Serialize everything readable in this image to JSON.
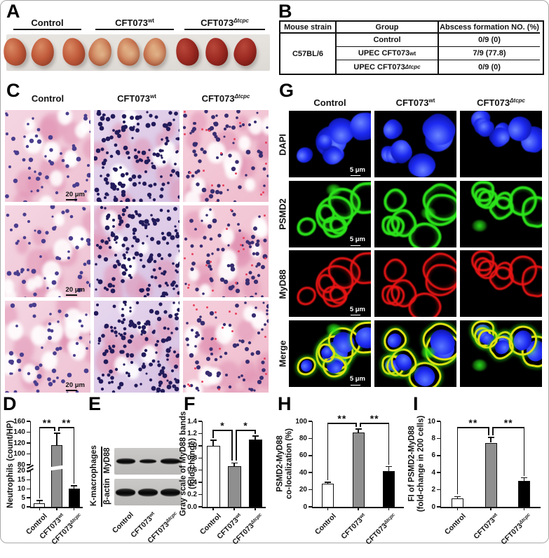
{
  "figure": {
    "panel_letters": {
      "A": "A",
      "B": "B",
      "C": "C",
      "D": "D",
      "E": "E",
      "F": "F",
      "G": "G",
      "H": "H",
      "I": "I"
    },
    "groups": [
      {
        "base": "Control",
        "sup": ""
      },
      {
        "base": "CFT073",
        "sup": "wt"
      },
      {
        "base": "CFT073",
        "sup": "Δtcpc"
      }
    ]
  },
  "panelB": {
    "headers": [
      "Mouse strain",
      "Group",
      "Abscess formation NO. (%)"
    ],
    "strain": "C57BL/6",
    "rows": [
      {
        "base": "Control",
        "sup": "",
        "value": "0/9 (0)"
      },
      {
        "base": "UPEC CFT073",
        "sup": "wt",
        "value": "7/9 (77.8)"
      },
      {
        "base": "UPEC CFT073",
        "sup": "Δtcpc",
        "value": "0/9 (0)"
      }
    ]
  },
  "panelC": {
    "scale_label": "20 μm"
  },
  "panelG": {
    "row_labels": [
      "DAPI",
      "PSMD2",
      "MyD88",
      "Merge"
    ],
    "scale_label": "5 μm"
  },
  "panelE": {
    "tissue_label": "K-macrophages",
    "blot_labels": [
      "MyD88",
      "β-actin"
    ]
  },
  "chart_data": [
    {
      "id": "D",
      "type": "bar",
      "ylabel_lines": [
        "Neutrophils (count/HP)"
      ],
      "categories": [
        "Control",
        "CFT073wt",
        "CFT073Δtcpc"
      ],
      "values": [
        2,
        116,
        10
      ],
      "errors": [
        1.5,
        22,
        1.8
      ],
      "bar_colors": [
        "#ffffff",
        "#8f8f8f",
        "#000000"
      ],
      "axis_break": true,
      "break_bars": [
        1
      ],
      "segments": [
        {
          "range": [
            0,
            20
          ],
          "frac": [
            0,
            0.42
          ],
          "ticks": [
            0,
            5,
            10,
            15,
            20
          ]
        },
        {
          "range": [
            80,
            160
          ],
          "frac": [
            0.49,
            1
          ],
          "ticks": [
            80,
            100,
            120,
            140,
            160
          ]
        }
      ],
      "decimals": 0,
      "sig": [
        {
          "a": 0,
          "b": 1,
          "label": "**",
          "oa": 0,
          "ob": -3
        },
        {
          "a": 1,
          "b": 2,
          "label": "**",
          "oa": 3,
          "ob": 0
        }
      ]
    },
    {
      "id": "F",
      "type": "bar",
      "ylabel_lines": [
        "Gray scale of MyD88 bands",
        "(fold-change)"
      ],
      "categories": [
        "Control",
        "CFT073wt",
        "CFT073Δtcpc"
      ],
      "values": [
        1.0,
        0.67,
        1.1
      ],
      "errors": [
        0.09,
        0.05,
        0.06
      ],
      "bar_colors": [
        "#ffffff",
        "#8f8f8f",
        "#000000"
      ],
      "axis_break": false,
      "segments": [
        {
          "range": [
            0,
            1.4
          ],
          "frac": [
            0,
            1
          ],
          "ticks": [
            0,
            0.2,
            0.4,
            0.6,
            0.8,
            1.0,
            1.2,
            1.4
          ]
        }
      ],
      "decimals": 1,
      "sig": [
        {
          "a": 0,
          "b": 1,
          "label": "*",
          "oa": 0,
          "ob": -3
        },
        {
          "a": 1,
          "b": 2,
          "label": "*",
          "oa": 3,
          "ob": 0
        }
      ]
    },
    {
      "id": "H",
      "type": "bar",
      "ylabel_lines": [
        "PSMD2-MyD88",
        "co-localization (%)"
      ],
      "categories": [
        "Control",
        "CFT073wt",
        "CFT073Δtcpc"
      ],
      "values": [
        27,
        87,
        42
      ],
      "errors": [
        1.5,
        4,
        5
      ],
      "bar_colors": [
        "#ffffff",
        "#8f8f8f",
        "#000000"
      ],
      "axis_break": false,
      "segments": [
        {
          "range": [
            0,
            100
          ],
          "frac": [
            0,
            1
          ],
          "ticks": [
            0,
            20,
            40,
            60,
            80,
            100
          ]
        }
      ],
      "decimals": 0,
      "sig": [
        {
          "a": 0,
          "b": 1,
          "label": "**",
          "oa": 0,
          "ob": -3
        },
        {
          "a": 1,
          "b": 2,
          "label": "**",
          "oa": 3,
          "ob": 0
        }
      ]
    },
    {
      "id": "I",
      "type": "bar",
      "ylabel_lines": [
        "FI of PSMD2-MyD88",
        "(fold-change in 200 cells)"
      ],
      "categories": [
        "Control",
        "CFT073wt",
        "CFT073Δtcpc"
      ],
      "values": [
        1,
        7.5,
        3
      ],
      "errors": [
        0.2,
        0.6,
        0.4
      ],
      "bar_colors": [
        "#ffffff",
        "#8f8f8f",
        "#000000"
      ],
      "axis_break": false,
      "segments": [
        {
          "range": [
            0,
            10
          ],
          "frac": [
            0,
            1
          ],
          "ticks": [
            0,
            2,
            4,
            6,
            8,
            10
          ]
        }
      ],
      "decimals": 0,
      "sig": [
        {
          "a": 0,
          "b": 1,
          "label": "**",
          "oa": 0,
          "ob": -3
        },
        {
          "a": 1,
          "b": 2,
          "label": "**",
          "oa": 3,
          "ob": 0
        }
      ]
    }
  ],
  "microscopy": {
    "histology_styles": [
      {
        "bg": "#f5d6e2",
        "bg2": "#eec2d3",
        "nucleus": "#4a3e8e",
        "nuclei": 55,
        "red_specks": 0,
        "lumens": 11
      },
      {
        "bg": "#e7d7ee",
        "bg2": "#d6c1e2",
        "nucleus": "#221b5a",
        "nuclei": 150,
        "red_specks": 0,
        "lumens": 6
      },
      {
        "bg": "#f5cfdc",
        "bg2": "#efbccd",
        "nucleus": "#382d70",
        "nuclei": 70,
        "red_specks": 18,
        "lumens": 9
      }
    ],
    "red_speck_color": "#e8425e",
    "tissue_color": "rgba(224,146,178,0.55)",
    "fluor": {
      "dapi": "#1d2af2",
      "psmd2": "#2be41a",
      "myd88": "#ea1414",
      "merge_ring": "#dfe312",
      "background": "#000000"
    }
  },
  "kidney_colors": [
    {
      "light": "#d98a63",
      "main": "#c05a3a",
      "dark": "#8d3a25"
    },
    {
      "light": "#e0ab80",
      "main": "#c4704c",
      "dark": "#94492e"
    },
    {
      "light": "#b8473a",
      "main": "#9c2a22",
      "dark": "#6b1712"
    }
  ]
}
